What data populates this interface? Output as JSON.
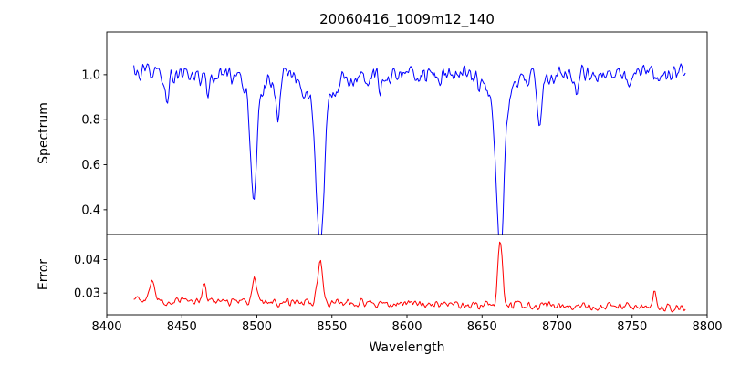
{
  "figure": {
    "title": "20060416_1009m12_140",
    "xlabel": "Wavelength",
    "background": "#ffffff"
  },
  "axes": {
    "x": {
      "min": 8400,
      "max": 8800,
      "ticks": [
        8400,
        8450,
        8500,
        8550,
        8600,
        8650,
        8700,
        8750,
        8800
      ]
    },
    "data_x_range": [
      8418,
      8786
    ]
  },
  "chart_data": [
    {
      "type": "line",
      "name": "spectrum",
      "ylabel": "Spectrum",
      "color": "#0000ff",
      "ylim": [
        0.29,
        1.19
      ],
      "yticks": [
        0.4,
        0.6,
        0.8,
        1.0
      ],
      "ytick_labels": [
        "0.4",
        "0.6",
        "0.8",
        "1.0"
      ],
      "baseline": 1.0,
      "noise_amplitude": 0.03,
      "features": [
        {
          "center": 8498.0,
          "amplitude": -0.47,
          "width": 2.0
        },
        {
          "center": 8542.1,
          "amplitude": -0.66,
          "width": 2.6
        },
        {
          "center": 8662.1,
          "amplitude": -0.68,
          "width": 2.4
        },
        {
          "center": 8440.0,
          "amplitude": -0.1,
          "width": 1.2
        },
        {
          "center": 8468.0,
          "amplitude": -0.1,
          "width": 1.1
        },
        {
          "center": 8514.0,
          "amplitude": -0.17,
          "width": 1.3
        },
        {
          "center": 8582.0,
          "amplitude": -0.08,
          "width": 1.0
        },
        {
          "center": 8621.0,
          "amplitude": -0.07,
          "width": 1.0
        },
        {
          "center": 8688.5,
          "amplitude": -0.22,
          "width": 1.4
        },
        {
          "center": 8713.0,
          "amplitude": -0.09,
          "width": 1.0
        },
        {
          "center": 8748.0,
          "amplitude": -0.08,
          "width": 1.0
        }
      ]
    },
    {
      "type": "line",
      "name": "error",
      "ylabel": "Error",
      "color": "#ff0000",
      "ylim": [
        0.0235,
        0.0475
      ],
      "yticks": [
        0.03,
        0.04
      ],
      "ytick_labels": [
        "0.03",
        "0.04"
      ],
      "baseline_start": 0.0278,
      "baseline_end": 0.0256,
      "noise_amplitude": 0.0009,
      "features": [
        {
          "center": 8430.0,
          "amplitude": 0.006,
          "width": 1.5
        },
        {
          "center": 8465.0,
          "amplitude": 0.0055,
          "width": 1.2
        },
        {
          "center": 8498.0,
          "amplitude": 0.007,
          "width": 1.5
        },
        {
          "center": 8542.1,
          "amplitude": 0.012,
          "width": 1.8
        },
        {
          "center": 8662.1,
          "amplitude": 0.019,
          "width": 1.6
        },
        {
          "center": 8765.0,
          "amplitude": 0.005,
          "width": 1.2
        }
      ]
    }
  ],
  "render": {
    "seed": 12345,
    "step": 0.75
  }
}
